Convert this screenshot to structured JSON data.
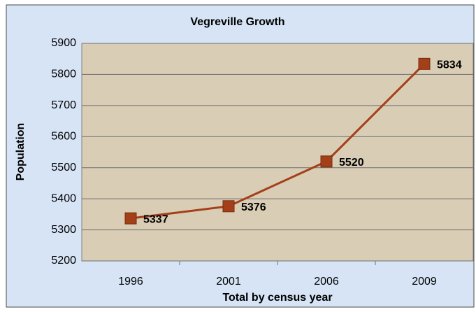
{
  "chart_data": {
    "type": "line",
    "title": "Vegreville Growth",
    "x_label": "Total by census year",
    "y_label": "Population",
    "categories": [
      "1996",
      "2001",
      "2006",
      "2009"
    ],
    "series": [
      {
        "name": "Population",
        "color": "#a3401a",
        "values": [
          5337,
          5376,
          5520,
          5834
        ]
      }
    ],
    "ylim": [
      5200,
      5900
    ],
    "yticks": [
      5200,
      5300,
      5400,
      5500,
      5600,
      5700,
      5800,
      5900
    ],
    "grid": true
  }
}
